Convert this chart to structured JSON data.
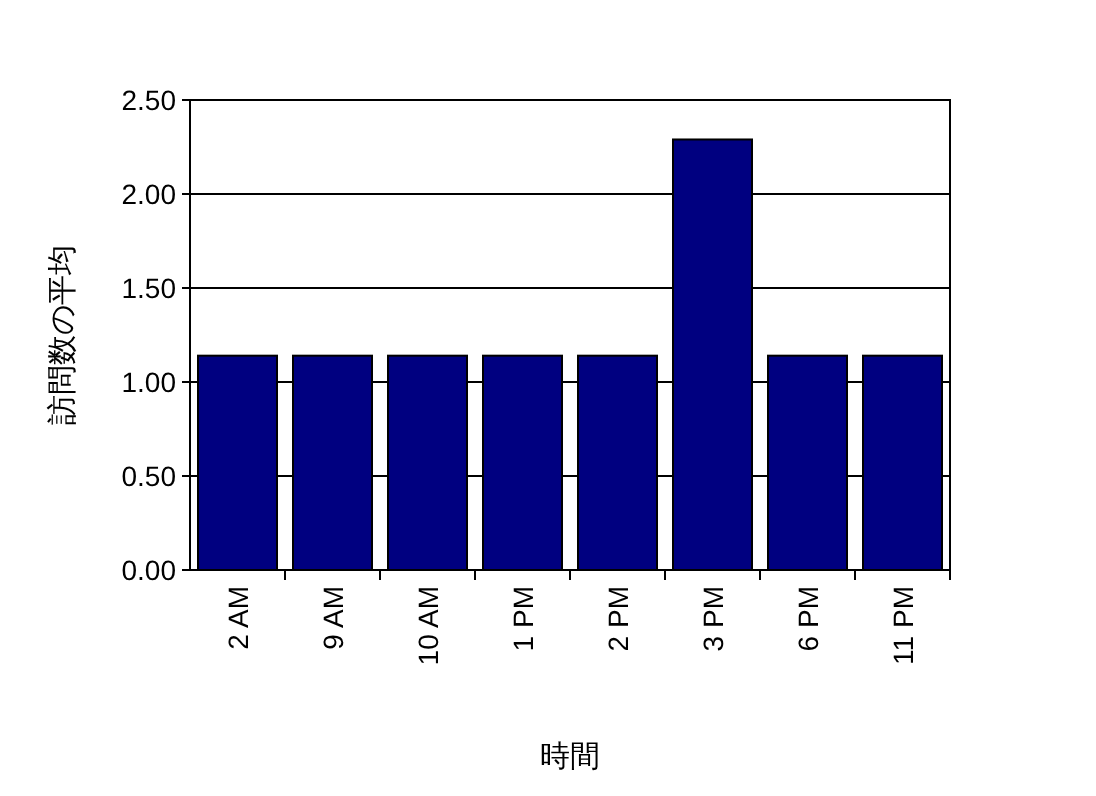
{
  "chart_data": {
    "type": "bar",
    "xlabel": "時間",
    "ylabel": "訪問数の平均",
    "categories": [
      "2 AM",
      "9 AM",
      "10 AM",
      "1 PM",
      "2 PM",
      "3 PM",
      "6 PM",
      "11 PM"
    ],
    "values": [
      1.14,
      1.14,
      1.14,
      1.14,
      1.14,
      2.29,
      1.14,
      1.14
    ],
    "color": "#000080",
    "ylim": [
      0,
      2.5
    ],
    "yticks": [
      {
        "value": 0,
        "label": "0.00"
      },
      {
        "value": 0.5,
        "label": "0.50"
      },
      {
        "value": 1,
        "label": "1.00"
      },
      {
        "value": 1.5,
        "label": "1.50"
      },
      {
        "value": 2,
        "label": "2.00"
      },
      {
        "value": 2.5,
        "label": "2.50"
      }
    ],
    "grid": "y"
  }
}
